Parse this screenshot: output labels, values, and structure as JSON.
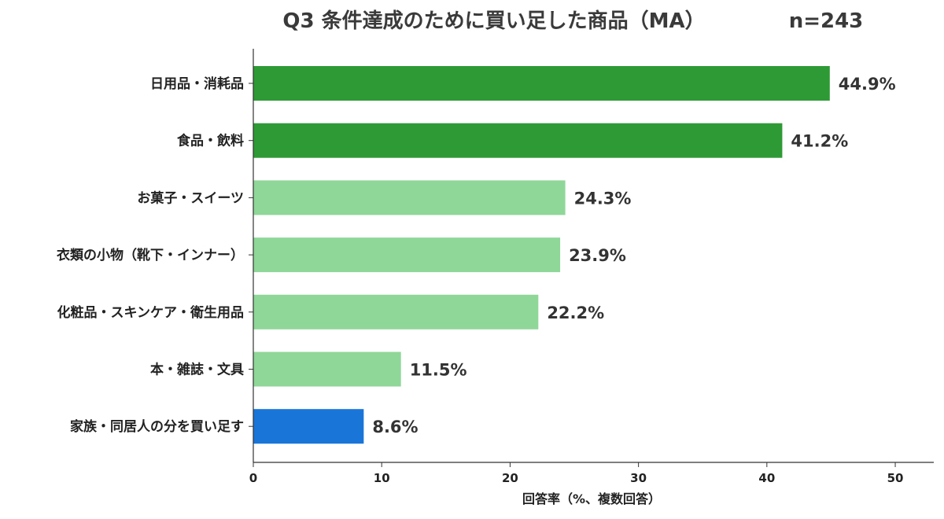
{
  "chart_data": {
    "type": "bar",
    "orientation": "horizontal",
    "title": "Q3 条件達成のために買い足した商品（MA）",
    "sample_size": "n=243",
    "categories": [
      "日用品・消耗品",
      "食品・飲料",
      "お菓子・スイーツ",
      "衣類の小物（靴下・インナー）",
      "化粧品・スキンケア・衛生用品",
      "本・雑誌・文具",
      "家族・同居人の分を買い足す"
    ],
    "values": [
      44.9,
      41.2,
      24.3,
      23.9,
      22.2,
      11.5,
      8.6
    ],
    "value_labels": [
      "44.9%",
      "41.2%",
      "24.3%",
      "23.9%",
      "22.2%",
      "11.5%",
      "8.6%"
    ],
    "bar_colors": [
      "#2e9a35",
      "#2e9a35",
      "#8fd699",
      "#8fd699",
      "#8fd699",
      "#8fd699",
      "#1a75d8"
    ],
    "xlabel": "回答率（%、複数回答）",
    "ylabel": "",
    "xlim": [
      0,
      53
    ],
    "xticks": [
      0,
      10,
      20,
      30,
      40,
      50
    ],
    "grid": false,
    "legend": "none"
  }
}
